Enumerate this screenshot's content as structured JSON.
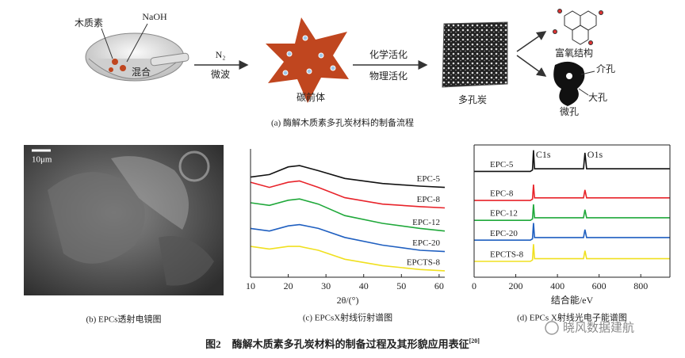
{
  "panel_a": {
    "lignin": "木质素",
    "naoh": "NaOH",
    "mix": "混合",
    "n2": "N₂",
    "microwave": "微波",
    "precursor": "碳前体",
    "chemical": "化学活化",
    "physical": "物理活化",
    "porous_carbon": "多孔炭",
    "oxygen_rich": "富氧结构",
    "mesopore": "介孔",
    "macropore": "大孔",
    "micropore": "微孔",
    "caption": "(a) 酶解木质素多孔炭材料的制备流程"
  },
  "panel_b": {
    "scale_label": "10μm",
    "caption": "(b) EPCs透射电镜图"
  },
  "chart_data": [
    {
      "type": "line",
      "caption": "(c) EPCsX射线衍射谱图",
      "x_label": "2θ/(°)",
      "frame": "open",
      "x": [
        10,
        15,
        20,
        23,
        28,
        35,
        45,
        55,
        61.5
      ],
      "xlim": [
        10,
        61.5
      ],
      "xticks": [
        10,
        20,
        30,
        40,
        50,
        60
      ],
      "ylim": [
        0,
        100
      ],
      "series": [
        {
          "name": "EPC-5",
          "color": "#111111",
          "values": [
            78,
            80,
            86,
            87,
            83,
            77,
            73,
            71,
            70
          ]
        },
        {
          "name": "EPC-8",
          "color": "#e8232a",
          "values": [
            74,
            70,
            74,
            75,
            70,
            62,
            57,
            55,
            54
          ]
        },
        {
          "name": "EPC-12",
          "color": "#1fa83a",
          "values": [
            58,
            56,
            60,
            61,
            57,
            48,
            42,
            38,
            36
          ]
        },
        {
          "name": "EPC-20",
          "color": "#1f5fc0",
          "values": [
            38,
            36,
            40,
            41,
            38,
            31,
            25,
            21,
            20
          ]
        },
        {
          "name": "EPCTS-8",
          "color": "#f0e020",
          "values": [
            24,
            22,
            24,
            24,
            21,
            14,
            9,
            6,
            5
          ]
        }
      ]
    },
    {
      "type": "line",
      "caption": "(d) EPCs X射线光电子能谱图",
      "x_label": "结合能/eV",
      "frame": "box",
      "x": [
        0,
        100,
        200,
        270,
        280,
        285,
        290,
        300,
        400,
        500,
        525,
        532,
        540,
        600,
        700,
        800,
        940
      ],
      "xlim": [
        0,
        940
      ],
      "xticks": [
        0,
        200,
        400,
        600,
        800
      ],
      "ylim": [
        0,
        100
      ],
      "annotations": [
        {
          "text": "C1s",
          "x": 285
        },
        {
          "text": "O1s",
          "x": 532
        }
      ],
      "series": [
        {
          "name": "EPC-5",
          "color": "#111111",
          "values": [
            80,
            80,
            80,
            80,
            81,
            96,
            82,
            82,
            82,
            82,
            82,
            94,
            82,
            82,
            82,
            82,
            82
          ]
        },
        {
          "name": "EPC-8",
          "color": "#e8232a",
          "values": [
            58,
            58,
            58,
            58,
            59,
            70,
            60,
            60,
            60,
            60,
            60,
            66,
            60,
            60,
            60,
            60,
            60
          ]
        },
        {
          "name": "EPC-12",
          "color": "#1fa83a",
          "values": [
            43,
            43,
            43,
            43,
            44,
            55,
            45,
            45,
            45,
            45,
            45,
            51,
            45,
            45,
            45,
            45,
            45
          ]
        },
        {
          "name": "EPC-20",
          "color": "#1f5fc0",
          "values": [
            28,
            28,
            28,
            28,
            29,
            41,
            30,
            30,
            30,
            30,
            30,
            36,
            30,
            30,
            30,
            30,
            30
          ]
        },
        {
          "name": "EPCTS-8",
          "color": "#f0e020",
          "values": [
            12,
            12,
            12,
            12,
            13,
            25,
            14,
            14,
            14,
            14,
            14,
            20,
            14,
            14,
            14,
            14,
            14
          ]
        }
      ]
    }
  ],
  "figure_caption": {
    "label": "图2",
    "text": "酶解木质素多孔炭材料的制备过程及其形貌应用表征",
    "ref": "[20]"
  },
  "watermark": "晓风数据建航"
}
